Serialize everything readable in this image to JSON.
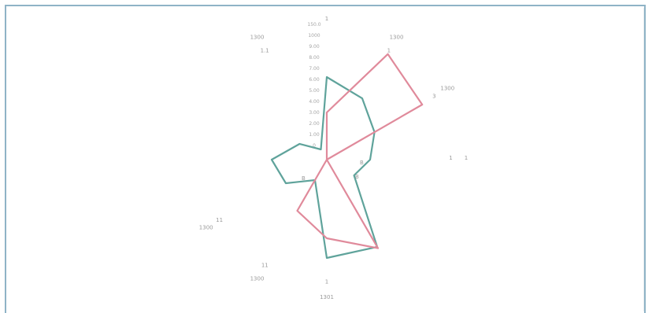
{
  "chart_data": {
    "type": "radar",
    "axis_labels": [
      "1",
      "1300",
      "1300",
      "1",
      "",
      "",
      "1301",
      "1300",
      "1300",
      "",
      "",
      "1300"
    ],
    "axis_values": [
      "",
      "1",
      "3",
      "1",
      "",
      "",
      "1",
      "11",
      "11",
      "",
      "",
      "1.1"
    ],
    "radial_ticks": [
      "150.0",
      "1000",
      "9.00",
      "8.00",
      "7.00",
      "6.00",
      "5.00",
      "4.00",
      "3.00",
      "2.00",
      "1.00",
      "0"
    ],
    "range": [
      0,
      150
    ],
    "center_marks": [
      "B",
      "B",
      "B"
    ],
    "series": [
      {
        "color": "#5fa39b",
        "values": [
          105,
          90,
          70,
          55,
          40,
          128,
          125,
          30,
          60,
          70,
          40,
          15
        ]
      },
      {
        "color": "#e08a9b",
        "values": [
          60,
          155,
          140,
          0,
          0,
          130,
          100,
          75,
          0,
          0,
          0,
          0
        ]
      }
    ],
    "grid": false
  }
}
